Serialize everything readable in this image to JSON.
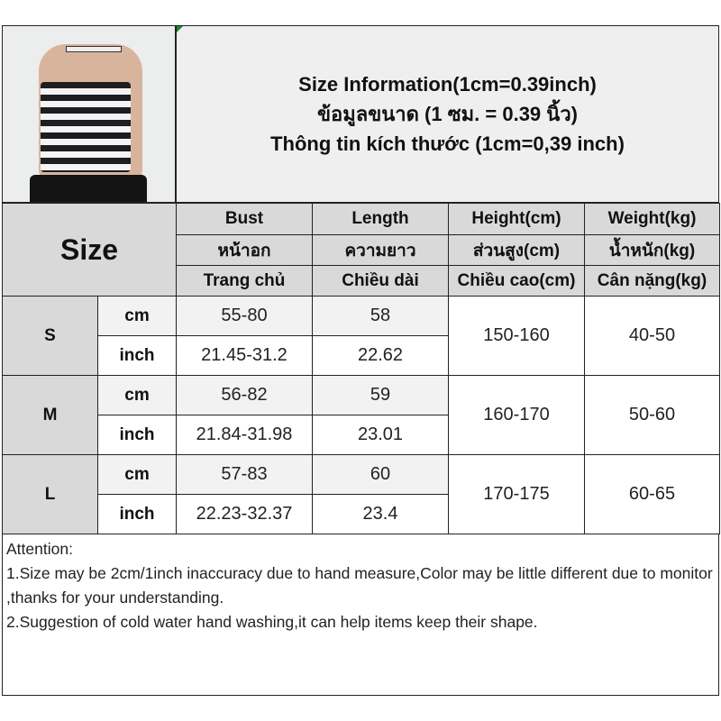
{
  "header": {
    "lines": [
      "Size Information(1cm=0.39inch)",
      "ข้อมูลขนาด (1 ซม. = 0.39 นิ้ว)",
      "Thông tin kích thước (1cm=0,39 inch)"
    ]
  },
  "table": {
    "size_label": "Size",
    "columns": [
      [
        "Bust",
        "หน้าอก",
        "Trang chủ"
      ],
      [
        "Length",
        "ความยาว",
        "Chiều dài"
      ],
      [
        "Height(cm)",
        "ส่วนสูง(cm)",
        "Chiều cao(cm)"
      ],
      [
        "Weight(kg)",
        "น้ำหนัก(kg)",
        "Cân nặng(kg)"
      ]
    ],
    "units": [
      "cm",
      "inch"
    ],
    "rows": [
      {
        "size": "S",
        "cm": [
          "55-80",
          "58"
        ],
        "inch": [
          "21.45-31.2",
          "22.62"
        ],
        "height": "150-160",
        "weight": "40-50"
      },
      {
        "size": "M",
        "cm": [
          "56-82",
          "59"
        ],
        "inch": [
          "21.84-31.98",
          "23.01"
        ],
        "height": "160-170",
        "weight": "50-60"
      },
      {
        "size": "L",
        "cm": [
          "57-83",
          "60"
        ],
        "inch": [
          "22.23-32.37",
          "23.4"
        ],
        "height": "170-175",
        "weight": "60-65"
      }
    ]
  },
  "attention": {
    "title": "Attention:",
    "items": [
      "1.Size may be 2cm/1inch inaccuracy due to hand measure,Color may be little different due to monitor ,thanks for your understanding.",
      "2.Suggestion of cold water hand washing,it can help items keep their shape."
    ]
  }
}
